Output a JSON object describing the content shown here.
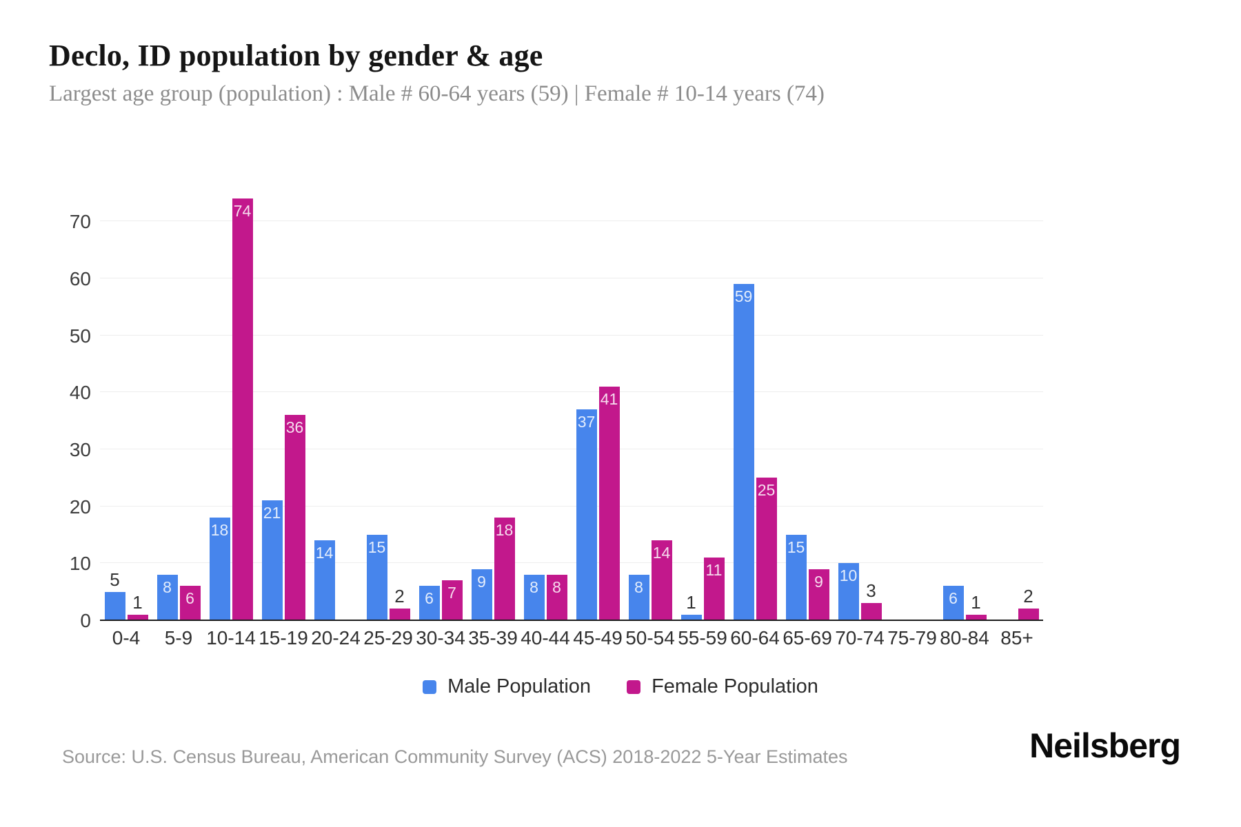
{
  "header": {
    "title": "Declo, ID population by gender & age",
    "subtitle": "Largest age group (population) : Male # 60-64 years (59) | Female # 10-14 years (74)"
  },
  "chart_data": {
    "type": "bar",
    "title": "Declo, ID population by gender & age",
    "subtitle": "Largest age group (population) : Male # 60-64 years (59) | Female # 10-14 years (74)",
    "categories": [
      "0-4",
      "5-9",
      "10-14",
      "15-19",
      "20-24",
      "25-29",
      "30-34",
      "35-39",
      "40-44",
      "45-49",
      "50-54",
      "55-59",
      "60-64",
      "65-69",
      "70-74",
      "75-79",
      "80-84",
      "85+"
    ],
    "series": [
      {
        "name": "Male Population",
        "color": "#4785ec",
        "values": [
          5,
          8,
          18,
          21,
          14,
          15,
          6,
          9,
          8,
          37,
          8,
          1,
          59,
          15,
          10,
          0,
          6,
          0
        ]
      },
      {
        "name": "Female Population",
        "color": "#c2188c",
        "values": [
          1,
          6,
          74,
          36,
          0,
          2,
          7,
          18,
          8,
          41,
          14,
          11,
          25,
          9,
          3,
          0,
          1,
          2
        ]
      }
    ],
    "xlabel": "",
    "ylabel": "",
    "ylim": [
      0,
      75
    ],
    "yticks": [
      0,
      10,
      20,
      30,
      40,
      50,
      60,
      70
    ],
    "grid": true,
    "legend_position": "bottom",
    "bar_label_rule": "values greater than 5 shown inside bar top in white; values 1-5 shown above bar in dark; zero values have no bar"
  },
  "colors": {
    "male": "#4785ec",
    "female": "#c2188c",
    "gridline": "#ededed",
    "axis_line": "#1c1c1c",
    "title_text": "#151515",
    "subtitle_text": "#8c8c8c"
  },
  "footer": {
    "source": "Source: U.S. Census Bureau, American Community Survey (ACS) 2018-2022 5-Year Estimates",
    "logo": "Neilsberg"
  }
}
